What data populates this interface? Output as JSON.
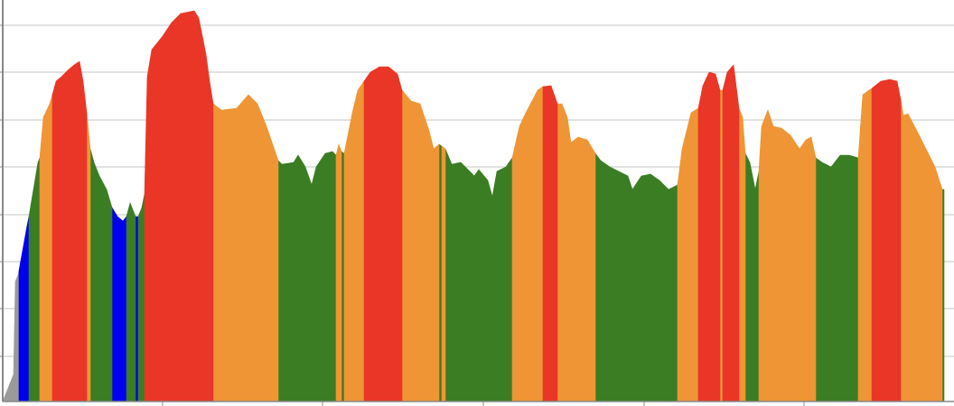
{
  "chart_data": {
    "type": "area",
    "xlim": [
      0,
      1053
    ],
    "xticks": [
      177,
      354,
      532,
      710,
      887
    ],
    "ylim": [
      0,
      445
    ],
    "yticks": [
      50,
      103,
      155,
      207,
      260,
      312,
      365,
      417
    ],
    "grid": true,
    "series": [
      {
        "color": "#9a9a9a",
        "x": [
          0,
          12,
          14,
          17,
          18
        ],
        "values": [
          0,
          30,
          133,
          140,
          145
        ]
      },
      {
        "color": "#0000ee",
        "x": [
          18,
          27,
          29,
          null,
          121,
          127,
          133,
          137,
          null,
          147,
          150
        ],
        "values": [
          145,
          195,
          205,
          null,
          215,
          205,
          200,
          205,
          null,
          205,
          205
        ]
      },
      {
        "color": "#3a7d23",
        "x": [
          29,
          39,
          41,
          null,
          97,
          101,
          107,
          115,
          121,
          null,
          137,
          141,
          145,
          147,
          null,
          150,
          154,
          157,
          null,
          305,
          309,
          322,
          327,
          335,
          342,
          347,
          357,
          365,
          369,
          null,
          375,
          378,
          null,
          483,
          486,
          null,
          490,
          497,
          507,
          517,
          522,
          527,
          537,
          542,
          547,
          557,
          564,
          null,
          656,
          662,
          672,
          682,
          692,
          697,
          707,
          717,
          727,
          737,
          747,
          null,
          822,
          827,
          833,
          837,
          null,
          900,
          907,
          917,
          927,
          937,
          947,
          null,
          1040,
          1042
        ],
        "values": [
          205,
          265,
          270,
          null,
          280,
          265,
          250,
          235,
          215,
          null,
          205,
          220,
          210,
          205,
          null,
          205,
          215,
          230,
          null,
          267,
          263,
          265,
          273,
          260,
          240,
          260,
          275,
          277,
          273,
          null,
          277,
          275,
          null,
          285,
          283,
          null,
          280,
          263,
          265,
          255,
          250,
          257,
          245,
          227,
          255,
          260,
          270,
          null,
          275,
          267,
          260,
          255,
          250,
          235,
          250,
          252,
          245,
          235,
          240,
          null,
          275,
          265,
          235,
          255,
          null,
          270,
          265,
          260,
          273,
          273,
          270,
          null,
          235,
          235
        ]
      },
      {
        "color": "#ef9535",
        "x": [
          41,
          45,
          52,
          55,
          null,
          93,
          97,
          null,
          233,
          242,
          259,
          272,
          282,
          292,
          305,
          null,
          369,
          372,
          375,
          null,
          378,
          387,
          393,
          400,
          null,
          442,
          452,
          462,
          472,
          477,
          483,
          null,
          486,
          490,
          null,
          564,
          572,
          579,
          587,
          592,
          598,
          null,
          614,
          619,
          625,
          629,
          637,
          647,
          656,
          null,
          747,
          752,
          762,
          770,
          null,
          794,
          797,
          null,
          815,
          819,
          822,
          null,
          837,
          840,
          847,
          853,
          862,
          872,
          882,
          889,
          895,
          900,
          null,
          947,
          952,
          959,
          962,
          null,
          994,
          997,
          1002,
          1012,
          1022,
          1032,
          1040
        ],
        "values": [
          270,
          315,
          330,
          340,
          null,
          320,
          280,
          null,
          330,
          323,
          325,
          340,
          330,
          305,
          267,
          null,
          273,
          285,
          277,
          null,
          275,
          320,
          345,
          355,
          null,
          345,
          333,
          330,
          300,
          280,
          285,
          null,
          283,
          280,
          null,
          270,
          305,
          320,
          335,
          345,
          349,
          null,
          330,
          330,
          315,
          287,
          293,
          290,
          275,
          null,
          240,
          280,
          320,
          325,
          null,
          345,
          345,
          null,
          325,
          315,
          275,
          null,
          255,
          305,
          323,
          305,
          303,
          295,
          280,
          290,
          293,
          270,
          null,
          270,
          340,
          345,
          347,
          null,
          335,
          317,
          319,
          300,
          280,
          260,
          235
        ]
      },
      {
        "color": "#e93627",
        "x": [
          55,
          59,
          65,
          72,
          79,
          85,
          89,
          93,
          null,
          157,
          160,
          165,
          177,
          187,
          197,
          212,
          217,
          225,
          229,
          233,
          null,
          400,
          407,
          417,
          427,
          437,
          442,
          null,
          598,
          607,
          614,
          null,
          770,
          775,
          782,
          789,
          794,
          null,
          797,
          802,
          809,
          815,
          null,
          962,
          972,
          982,
          990,
          994
        ],
        "values": [
          340,
          355,
          360,
          367,
          373,
          377,
          355,
          320,
          null,
          230,
          360,
          390,
          405,
          420,
          430,
          433,
          425,
          385,
          355,
          330,
          null,
          355,
          365,
          371,
          371,
          363,
          345,
          null,
          349,
          350,
          330,
          null,
          325,
          350,
          365,
          363,
          345,
          null,
          345,
          365,
          373,
          325,
          null,
          347,
          355,
          357,
          355,
          335
        ]
      }
    ]
  }
}
